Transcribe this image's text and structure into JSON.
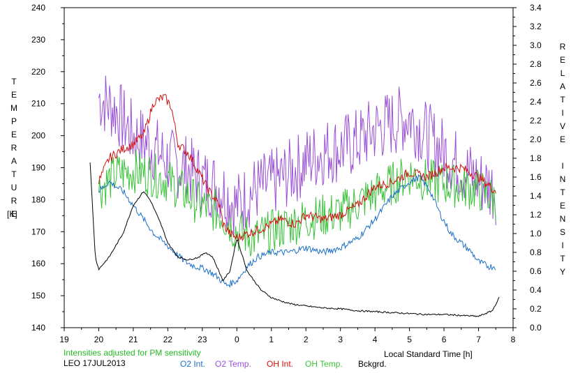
{
  "chart_data": {
    "type": "line",
    "left_axis_title": "TEMPERATURE",
    "left_axis_unit": "[K]",
    "right_axis_title": "RELATIVE INTENSITY",
    "xlabel": "Local Standard Time [h]",
    "note": "Intensities adjusted for PM sensitivity",
    "station_date": "LEO 17JUL2013",
    "xlim": [
      19,
      32
    ],
    "x_ticks": [
      19,
      20,
      21,
      22,
      23,
      24,
      25,
      26,
      27,
      28,
      29,
      30,
      31,
      32
    ],
    "x_tick_labels": [
      "19",
      "20",
      "21",
      "22",
      "23",
      "0",
      "1",
      "2",
      "3",
      "4",
      "5",
      "6",
      "7",
      "8"
    ],
    "y_left_lim": [
      140,
      240
    ],
    "y_left_ticks": [
      140,
      150,
      160,
      170,
      180,
      190,
      200,
      210,
      220,
      230,
      240
    ],
    "y_right_lim": [
      0.0,
      3.4
    ],
    "y_right_ticks": [
      "0.0",
      "0.2",
      "0.4",
      "0.6",
      "0.8",
      "1.0",
      "1.2",
      "1.4",
      "1.6",
      "1.8",
      "2.0",
      "2.2",
      "2.4",
      "2.6",
      "2.8",
      "3.0",
      "3.2",
      "3.4"
    ],
    "grid": false,
    "colors": {
      "o2_int": "#1e6fc8",
      "o2_temp": "#9a4fd6",
      "oh_int": "#d01010",
      "oh_temp": "#3ac23a",
      "bckgrd": "#000000",
      "note": "#22bb22"
    },
    "legend": [
      {
        "key": "o2_int",
        "label": "O2 Int."
      },
      {
        "key": "o2_temp",
        "label": "O2 Temp."
      },
      {
        "key": "oh_int",
        "label": "OH Int."
      },
      {
        "key": "oh_temp",
        "label": "OH Temp."
      },
      {
        "key": "bckgrd",
        "label": "Bckgrd."
      }
    ],
    "series": [
      {
        "key": "o2_temp",
        "name": "O2 Temp.",
        "axis": "left",
        "noise": 11,
        "x": [
          20.0,
          20.5,
          21.0,
          21.5,
          22.0,
          22.5,
          23.0,
          23.5,
          24.0,
          24.5,
          25.0,
          25.5,
          26.0,
          26.5,
          27.0,
          27.5,
          28.0,
          28.5,
          29.0,
          29.5,
          30.0,
          30.5,
          31.0,
          31.5
        ],
        "y": [
          212,
          208,
          200,
          197,
          192,
          190,
          186,
          184,
          178,
          183,
          185,
          188,
          192,
          195,
          196,
          198,
          202,
          204,
          206,
          200,
          195,
          190,
          186,
          183
        ]
      },
      {
        "key": "oh_temp",
        "name": "OH Temp.",
        "axis": "left",
        "noise": 7,
        "x": [
          20.0,
          20.5,
          21.0,
          21.5,
          22.0,
          22.5,
          23.0,
          23.5,
          24.0,
          24.5,
          25.0,
          25.5,
          26.0,
          26.5,
          27.0,
          27.5,
          28.0,
          28.5,
          29.0,
          29.5,
          30.0,
          30.5,
          31.0,
          31.5
        ],
        "y": [
          183,
          188,
          189,
          188,
          186,
          182,
          178,
          176,
          170,
          168,
          170,
          172,
          174,
          175,
          176,
          179,
          182,
          185,
          188,
          186,
          185,
          184,
          183,
          180
        ]
      },
      {
        "key": "oh_int",
        "name": "OH Int.",
        "axis": "right",
        "noise": 0.05,
        "x": [
          20.0,
          20.3,
          20.7,
          21.0,
          21.3,
          21.6,
          21.9,
          22.1,
          22.3,
          22.6,
          22.9,
          23.2,
          23.5,
          23.6,
          23.8,
          24.0,
          24.3,
          24.7,
          25.0,
          25.3,
          25.7,
          26.0,
          26.5,
          27.0,
          27.5,
          28.0,
          28.5,
          29.0,
          29.5,
          30.0,
          30.5,
          31.0,
          31.5
        ],
        "y": [
          1.55,
          1.8,
          1.9,
          1.95,
          2.05,
          2.4,
          2.45,
          2.35,
          1.95,
          1.85,
          1.65,
          1.45,
          1.3,
          1.1,
          1.0,
          0.95,
          1.0,
          1.05,
          1.1,
          1.15,
          1.1,
          1.2,
          1.15,
          1.2,
          1.3,
          1.5,
          1.55,
          1.65,
          1.6,
          1.7,
          1.7,
          1.6,
          1.45
        ]
      },
      {
        "key": "o2_int",
        "name": "O2 Int.",
        "axis": "right",
        "noise": 0.035,
        "x": [
          20.0,
          20.3,
          20.7,
          21.0,
          21.3,
          21.6,
          21.9,
          22.2,
          22.5,
          22.8,
          23.1,
          23.4,
          23.7,
          24.0,
          24.3,
          24.6,
          25.0,
          25.5,
          26.0,
          26.5,
          27.0,
          27.5,
          28.0,
          28.5,
          29.0,
          29.3,
          29.6,
          29.9,
          30.2,
          30.5,
          30.8,
          31.0,
          31.3,
          31.5
        ],
        "y": [
          1.45,
          1.55,
          1.45,
          1.3,
          1.15,
          1.0,
          0.9,
          0.8,
          0.7,
          0.65,
          0.62,
          0.55,
          0.45,
          0.5,
          0.65,
          0.75,
          0.8,
          0.8,
          0.85,
          0.8,
          0.85,
          0.95,
          1.15,
          1.4,
          1.55,
          1.6,
          1.45,
          1.2,
          1.0,
          0.9,
          0.8,
          0.7,
          0.65,
          0.65
        ]
      },
      {
        "key": "bckgrd",
        "name": "Bckgrd.",
        "axis": "right",
        "noise": 0.008,
        "x": [
          19.75,
          19.9,
          20.0,
          20.3,
          20.7,
          21.0,
          21.2,
          21.3,
          21.5,
          21.8,
          22.0,
          22.3,
          22.6,
          22.9,
          23.1,
          23.3,
          23.6,
          23.8,
          24.0,
          24.3,
          24.7,
          25.0,
          25.3,
          25.6,
          26.0,
          26.5,
          27.0,
          27.5,
          28.0,
          28.5,
          29.0,
          29.5,
          30.0,
          30.5,
          31.0,
          31.2,
          31.4,
          31.6
        ],
        "y": [
          1.75,
          0.75,
          0.62,
          0.75,
          1.0,
          1.3,
          1.4,
          1.45,
          1.35,
          1.1,
          0.9,
          0.75,
          0.72,
          0.75,
          0.8,
          0.75,
          0.5,
          0.6,
          0.95,
          0.6,
          0.4,
          0.32,
          0.28,
          0.25,
          0.23,
          0.21,
          0.2,
          0.18,
          0.17,
          0.16,
          0.15,
          0.14,
          0.14,
          0.13,
          0.12,
          0.15,
          0.18,
          0.32
        ]
      }
    ]
  }
}
